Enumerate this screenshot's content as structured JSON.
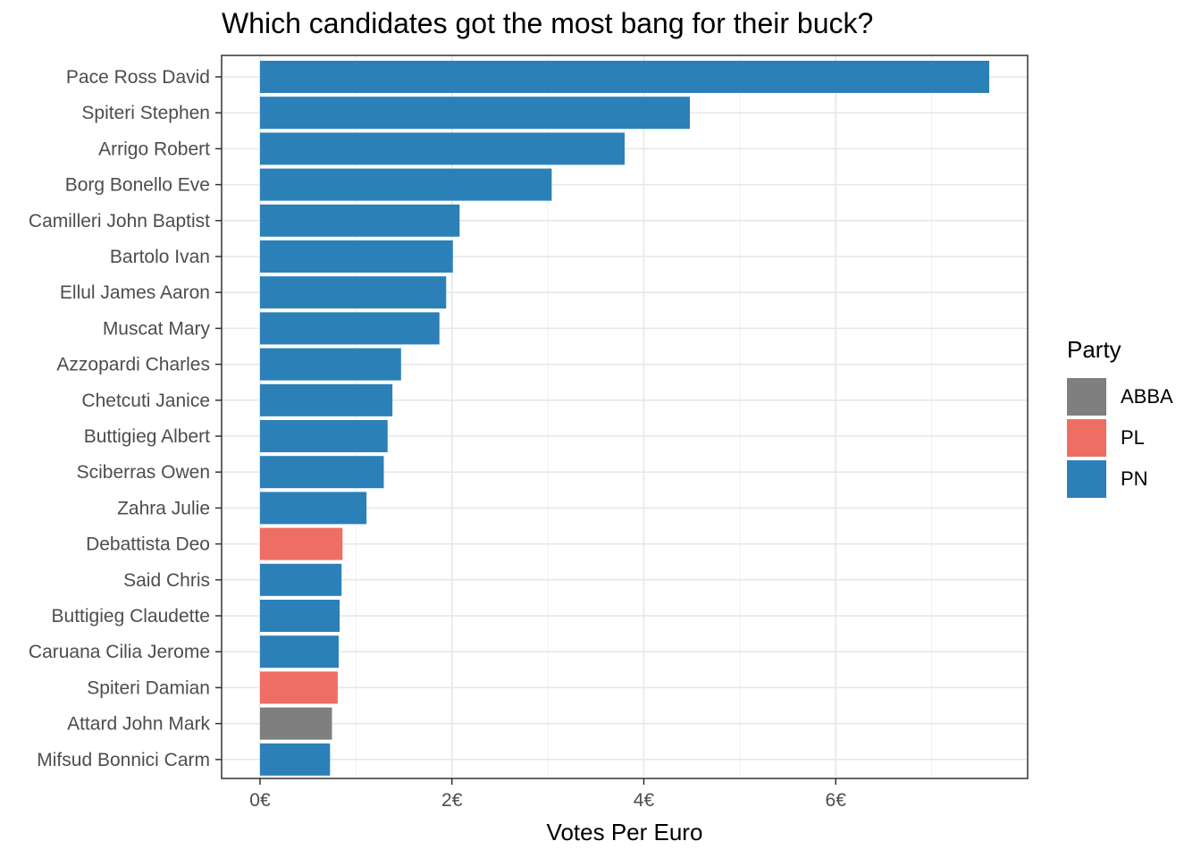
{
  "chart_data": {
    "type": "bar",
    "orientation": "horizontal",
    "title": "Which candidates got the most bang for their buck?",
    "xlabel": "Votes Per Euro",
    "ylabel": "",
    "xlim": [
      -0.4,
      8.0
    ],
    "x_ticks": [
      0,
      2,
      4,
      6
    ],
    "x_tick_labels": [
      "0€",
      "2€",
      "4€",
      "6€"
    ],
    "grid": true,
    "legend": {
      "title": "Party",
      "placement": "right",
      "entries": [
        {
          "label": "ABBA",
          "color": "#7f7f7f"
        },
        {
          "label": "PL",
          "color": "#ee6e64"
        },
        {
          "label": "PN",
          "color": "#2b80b8"
        }
      ]
    },
    "categories": [
      "Pace Ross David",
      "Spiteri Stephen",
      "Arrigo Robert",
      "Borg Bonello Eve",
      "Camilleri John Baptist",
      "Bartolo Ivan",
      "Ellul James Aaron",
      "Muscat Mary",
      "Azzopardi Charles",
      "Chetcuti Janice",
      "Buttigieg Albert",
      "Sciberras Owen",
      "Zahra Julie",
      "Debattista Deo",
      "Said Chris",
      "Buttigieg Claudette",
      "Caruana Cilia Jerome",
      "Spiteri Damian",
      "Attard John Mark",
      "Mifsud Bonnici Carm"
    ],
    "values": [
      7.6,
      4.48,
      3.8,
      3.04,
      2.08,
      2.01,
      1.94,
      1.87,
      1.47,
      1.38,
      1.33,
      1.29,
      1.11,
      0.86,
      0.85,
      0.83,
      0.82,
      0.81,
      0.75,
      0.73
    ],
    "parties": [
      "PN",
      "PN",
      "PN",
      "PN",
      "PN",
      "PN",
      "PN",
      "PN",
      "PN",
      "PN",
      "PN",
      "PN",
      "PN",
      "PL",
      "PN",
      "PN",
      "PN",
      "PL",
      "ABBA",
      "PN"
    ]
  }
}
